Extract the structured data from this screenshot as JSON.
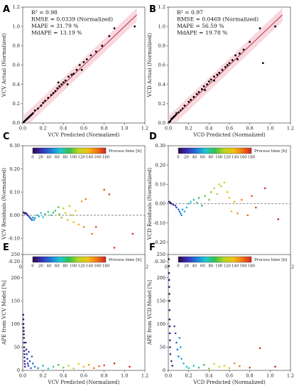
{
  "colorbar": {
    "label": "Process time [h]",
    "ticks": [
      0,
      20,
      40,
      60,
      80,
      100,
      120,
      140,
      160,
      180
    ],
    "range": [
      0,
      180
    ],
    "colors": [
      "#2a0a4a",
      "#3b2fb8",
      "#1e7ad6",
      "#1fc7d4",
      "#33c14a",
      "#b7d822",
      "#f2c214",
      "#f07a14",
      "#d6201e"
    ]
  },
  "chart_data": [
    {
      "id": "A",
      "type": "scatter",
      "letter": "A",
      "xlabel": "VCV Predicted (Normalized)",
      "ylabel": "VCV Actual (Normalized)",
      "xlim": [
        0,
        1.2
      ],
      "ylim": [
        0,
        1.2
      ],
      "xticks": [
        "0.0",
        "0.2",
        "0.4",
        "0.6",
        "0.8",
        "1.0",
        "1.2"
      ],
      "yticks": [
        "0.0",
        "0.2",
        "0.4",
        "0.6",
        "0.8",
        "1.0",
        "1.2"
      ],
      "stats": [
        "R² = 0.98",
        "RMSE = 0.0339 (Normalized)",
        "MAPE = 31.79 %",
        "MdAPE = 13.19 %"
      ],
      "fit_line": [
        [
          0,
          0
        ],
        [
          1.12,
          1.12
        ]
      ],
      "band_color": "#f3b8c4",
      "line_color": "#b5203a",
      "point_color": "#000000",
      "points": [
        [
          0.01,
          0.01
        ],
        [
          0.02,
          0.02
        ],
        [
          0.03,
          0.03
        ],
        [
          0.04,
          0.04
        ],
        [
          0.05,
          0.05
        ],
        [
          0.06,
          0.06
        ],
        [
          0.07,
          0.07
        ],
        [
          0.08,
          0.08
        ],
        [
          0.09,
          0.09
        ],
        [
          0.1,
          0.1
        ],
        [
          0.12,
          0.13
        ],
        [
          0.15,
          0.15
        ],
        [
          0.18,
          0.18
        ],
        [
          0.2,
          0.21
        ],
        [
          0.22,
          0.23
        ],
        [
          0.25,
          0.26
        ],
        [
          0.28,
          0.29
        ],
        [
          0.3,
          0.31
        ],
        [
          0.32,
          0.33
        ],
        [
          0.34,
          0.36
        ],
        [
          0.36,
          0.38
        ],
        [
          0.38,
          0.4
        ],
        [
          0.4,
          0.42
        ],
        [
          0.42,
          0.44
        ],
        [
          0.45,
          0.48
        ],
        [
          0.48,
          0.5
        ],
        [
          0.5,
          0.51
        ],
        [
          0.53,
          0.55
        ],
        [
          0.56,
          0.6
        ],
        [
          0.6,
          0.63
        ],
        [
          0.63,
          0.66
        ],
        [
          0.67,
          0.7
        ],
        [
          0.72,
          0.74
        ],
        [
          0.78,
          0.8
        ],
        [
          0.85,
          0.9
        ],
        [
          0.9,
          0.98
        ],
        [
          1.1,
          1.0
        ],
        [
          0.58,
          0.55
        ],
        [
          0.44,
          0.4
        ],
        [
          0.35,
          0.42
        ]
      ]
    },
    {
      "id": "B",
      "type": "scatter",
      "letter": "B",
      "xlabel": "VCD Predicted (Normalized)",
      "ylabel": "VCD Actual (Normalized)",
      "xlim": [
        0,
        1.2
      ],
      "ylim": [
        0,
        1.2
      ],
      "xticks": [
        "0.0",
        "0.2",
        "0.4",
        "0.6",
        "0.8",
        "1.0",
        "1.2"
      ],
      "yticks": [
        "0.0",
        "0.2",
        "0.4",
        "0.6",
        "0.8",
        "1.0",
        "1.2"
      ],
      "stats": [
        "R² = 0.97",
        "RMSE = 0.0469 (Normalized)",
        "MAPE = 56.59 %",
        "MdAPE = 19.78 %"
      ],
      "fit_line": [
        [
          0,
          0
        ],
        [
          1.12,
          1.12
        ]
      ],
      "band_color": "#f3b8c4",
      "line_color": "#b5203a",
      "point_color": "#000000",
      "points": [
        [
          0.01,
          0.01
        ],
        [
          0.02,
          0.02
        ],
        [
          0.03,
          0.04
        ],
        [
          0.04,
          0.05
        ],
        [
          0.05,
          0.06
        ],
        [
          0.06,
          0.07
        ],
        [
          0.07,
          0.08
        ],
        [
          0.08,
          0.1
        ],
        [
          0.1,
          0.11
        ],
        [
          0.12,
          0.13
        ],
        [
          0.14,
          0.15
        ],
        [
          0.16,
          0.18
        ],
        [
          0.2,
          0.22
        ],
        [
          0.22,
          0.24
        ],
        [
          0.25,
          0.27
        ],
        [
          0.28,
          0.3
        ],
        [
          0.3,
          0.32
        ],
        [
          0.33,
          0.35
        ],
        [
          0.35,
          0.38
        ],
        [
          0.38,
          0.4
        ],
        [
          0.4,
          0.43
        ],
        [
          0.42,
          0.45
        ],
        [
          0.45,
          0.48
        ],
        [
          0.48,
          0.5
        ],
        [
          0.5,
          0.52
        ],
        [
          0.53,
          0.55
        ],
        [
          0.56,
          0.58
        ],
        [
          0.6,
          0.62
        ],
        [
          0.63,
          0.65
        ],
        [
          0.66,
          0.7
        ],
        [
          0.7,
          0.72
        ],
        [
          0.74,
          0.76
        ],
        [
          0.8,
          0.84
        ],
        [
          0.9,
          0.98
        ],
        [
          0.93,
          0.62
        ],
        [
          1.05,
          1.0
        ],
        [
          0.58,
          0.6
        ],
        [
          0.45,
          0.44
        ],
        [
          0.36,
          0.34
        ],
        [
          0.68,
          0.66
        ]
      ]
    },
    {
      "id": "C",
      "type": "scatter",
      "letter": "C",
      "xlabel": "VCV Predicted (Normalized)",
      "ylabel": "VCV Residuals (Normalized)",
      "xlim": [
        0,
        1.2
      ],
      "ylim": [
        -0.2,
        0.3
      ],
      "xticks": [
        "0.0",
        "0.2",
        "0.4",
        "0.6",
        "0.8",
        "1.0",
        "1.2"
      ],
      "yticks": [
        "-0.20",
        "-0.10",
        "0.00",
        "0.10",
        "0.20",
        "0.30"
      ],
      "reference_line": 0,
      "points": [
        [
          0.01,
          0.012,
          5
        ],
        [
          0.02,
          0.008,
          8
        ],
        [
          0.03,
          0.01,
          12
        ],
        [
          0.04,
          0.005,
          18
        ],
        [
          0.05,
          0.0,
          22
        ],
        [
          0.06,
          -0.005,
          30
        ],
        [
          0.07,
          -0.01,
          35
        ],
        [
          0.08,
          -0.015,
          40
        ],
        [
          0.09,
          -0.02,
          45
        ],
        [
          0.1,
          -0.01,
          48
        ],
        [
          0.11,
          -0.02,
          50
        ],
        [
          0.12,
          -0.012,
          55
        ],
        [
          0.14,
          0.0,
          60
        ],
        [
          0.16,
          -0.005,
          62
        ],
        [
          0.18,
          0.01,
          65
        ],
        [
          0.2,
          -0.008,
          70
        ],
        [
          0.22,
          0.005,
          72
        ],
        [
          0.25,
          0.015,
          75
        ],
        [
          0.28,
          0.0,
          80
        ],
        [
          0.3,
          0.012,
          85
        ],
        [
          0.32,
          0.02,
          90
        ],
        [
          0.35,
          0.035,
          95
        ],
        [
          0.36,
          0.005,
          100
        ],
        [
          0.38,
          -0.01,
          105
        ],
        [
          0.4,
          0.03,
          110
        ],
        [
          0.42,
          0.01,
          115
        ],
        [
          0.44,
          -0.02,
          118
        ],
        [
          0.46,
          0.04,
          120
        ],
        [
          0.48,
          0.0,
          125
        ],
        [
          0.5,
          -0.03,
          130
        ],
        [
          0.52,
          0.02,
          135
        ],
        [
          0.55,
          -0.04,
          140
        ],
        [
          0.58,
          0.06,
          145
        ],
        [
          0.6,
          -0.05,
          150
        ],
        [
          0.62,
          0.07,
          155
        ],
        [
          0.68,
          -0.08,
          160
        ],
        [
          0.72,
          -0.05,
          165
        ],
        [
          0.8,
          0.11,
          170
        ],
        [
          0.85,
          0.09,
          172
        ],
        [
          0.9,
          -0.14,
          175
        ],
        [
          1.08,
          -0.08,
          180
        ]
      ]
    },
    {
      "id": "D",
      "type": "scatter",
      "letter": "D",
      "xlabel": "VCD Predicted (Normalized)",
      "ylabel": "VCD Residuals (Normalized)",
      "xlim": [
        0,
        1.2
      ],
      "ylim": [
        -0.3,
        0.3
      ],
      "xticks": [
        "0.0",
        "0.2",
        "0.4",
        "0.6",
        "0.8",
        "1.0",
        "1.2"
      ],
      "yticks": [
        "-0.30",
        "-0.20",
        "-0.10",
        "0.00",
        "0.10",
        "0.20",
        "0.30"
      ],
      "reference_line": 0,
      "points": [
        [
          0.01,
          0.01,
          4
        ],
        [
          0.02,
          0.005,
          8
        ],
        [
          0.03,
          0.0,
          12
        ],
        [
          0.05,
          -0.005,
          18
        ],
        [
          0.07,
          -0.01,
          25
        ],
        [
          0.08,
          -0.02,
          32
        ],
        [
          0.1,
          -0.03,
          38
        ],
        [
          0.11,
          -0.04,
          42
        ],
        [
          0.12,
          -0.05,
          46
        ],
        [
          0.13,
          -0.06,
          50
        ],
        [
          0.14,
          -0.03,
          55
        ],
        [
          0.16,
          -0.04,
          58
        ],
        [
          0.18,
          -0.02,
          62
        ],
        [
          0.2,
          0.0,
          66
        ],
        [
          0.22,
          0.01,
          70
        ],
        [
          0.25,
          0.02,
          75
        ],
        [
          0.28,
          0.005,
          80
        ],
        [
          0.3,
          0.03,
          85
        ],
        [
          0.33,
          -0.01,
          90
        ],
        [
          0.36,
          0.04,
          95
        ],
        [
          0.4,
          0.02,
          100
        ],
        [
          0.42,
          0.06,
          105
        ],
        [
          0.45,
          0.08,
          110
        ],
        [
          0.48,
          0.05,
          115
        ],
        [
          0.5,
          0.1,
          118
        ],
        [
          0.52,
          0.09,
          122
        ],
        [
          0.55,
          0.11,
          128
        ],
        [
          0.58,
          0.06,
          132
        ],
        [
          0.6,
          0.03,
          136
        ],
        [
          0.62,
          -0.04,
          140
        ],
        [
          0.65,
          0.01,
          145
        ],
        [
          0.68,
          -0.05,
          150
        ],
        [
          0.72,
          0.02,
          155
        ],
        [
          0.78,
          -0.06,
          162
        ],
        [
          0.82,
          0.04,
          168
        ],
        [
          0.86,
          -0.02,
          172
        ],
        [
          0.93,
          -0.29,
          176
        ],
        [
          0.95,
          0.08,
          178
        ],
        [
          1.08,
          -0.08,
          180
        ]
      ]
    },
    {
      "id": "E",
      "type": "scatter",
      "letter": "E",
      "xlabel": "VCV Predicted (Normalized)",
      "ylabel": "APE from VCV Model [%]",
      "xlim": [
        0,
        1.2
      ],
      "ylim": [
        0,
        250
      ],
      "xticks": [
        "0.0",
        "0.2",
        "0.4",
        "0.6",
        "0.8",
        "1.0",
        "1.2"
      ],
      "yticks": [
        "0",
        "50",
        "100",
        "150",
        "200",
        "250"
      ],
      "points": [
        [
          0.005,
          120,
          0
        ],
        [
          0.006,
          110,
          1
        ],
        [
          0.007,
          100,
          2
        ],
        [
          0.008,
          92,
          3
        ],
        [
          0.01,
          85,
          4
        ],
        [
          0.011,
          78,
          5
        ],
        [
          0.012,
          70,
          6
        ],
        [
          0.013,
          60,
          7
        ],
        [
          0.014,
          50,
          8
        ],
        [
          0.015,
          42,
          9
        ],
        [
          0.016,
          35,
          10
        ],
        [
          0.017,
          28,
          11
        ],
        [
          0.018,
          20,
          12
        ],
        [
          0.02,
          14,
          13
        ],
        [
          0.022,
          8,
          14
        ],
        [
          0.03,
          60,
          18
        ],
        [
          0.035,
          45,
          20
        ],
        [
          0.04,
          35,
          22
        ],
        [
          0.045,
          25,
          24
        ],
        [
          0.05,
          15,
          26
        ],
        [
          0.055,
          10,
          28
        ],
        [
          0.06,
          40,
          30
        ],
        [
          0.07,
          20,
          34
        ],
        [
          0.08,
          5,
          38
        ],
        [
          0.09,
          30,
          40
        ],
        [
          0.1,
          15,
          44
        ],
        [
          0.12,
          8,
          48
        ],
        [
          0.15,
          5,
          52
        ],
        [
          0.2,
          10,
          60
        ],
        [
          0.25,
          4,
          70
        ],
        [
          0.3,
          8,
          80
        ],
        [
          0.35,
          12,
          90
        ],
        [
          0.4,
          6,
          100
        ],
        [
          0.45,
          10,
          110
        ],
        [
          0.5,
          4,
          120
        ],
        [
          0.55,
          14,
          130
        ],
        [
          0.6,
          8,
          140
        ],
        [
          0.65,
          12,
          150
        ],
        [
          0.7,
          5,
          160
        ],
        [
          0.75,
          9,
          165
        ],
        [
          0.8,
          11,
          170
        ],
        [
          0.9,
          15,
          175
        ],
        [
          1.05,
          8,
          180
        ]
      ]
    },
    {
      "id": "F",
      "type": "scatter",
      "letter": "F",
      "xlabel": "VCD Predicted (Normalized)",
      "ylabel": "APE from VCD Model [%]",
      "xlim": [
        0,
        1.2
      ],
      "ylim": [
        0,
        250
      ],
      "xticks": [
        "0.0",
        "0.2",
        "0.4",
        "0.6",
        "0.8",
        "1.0",
        "1.2"
      ],
      "yticks": [
        "0",
        "50",
        "100",
        "150",
        "200",
        "250"
      ],
      "points": [
        [
          0.005,
          240,
          0
        ],
        [
          0.006,
          225,
          1
        ],
        [
          0.007,
          210,
          2
        ],
        [
          0.008,
          195,
          3
        ],
        [
          0.009,
          180,
          4
        ],
        [
          0.01,
          165,
          5
        ],
        [
          0.011,
          150,
          6
        ],
        [
          0.012,
          130,
          7
        ],
        [
          0.013,
          110,
          8
        ],
        [
          0.014,
          95,
          9
        ],
        [
          0.015,
          80,
          10
        ],
        [
          0.016,
          65,
          11
        ],
        [
          0.017,
          50,
          12
        ],
        [
          0.02,
          35,
          14
        ],
        [
          0.03,
          20,
          16
        ],
        [
          0.04,
          10,
          18
        ],
        [
          0.06,
          95,
          30
        ],
        [
          0.07,
          80,
          34
        ],
        [
          0.08,
          60,
          40
        ],
        [
          0.09,
          45,
          44
        ],
        [
          0.1,
          30,
          48
        ],
        [
          0.11,
          70,
          52
        ],
        [
          0.12,
          50,
          55
        ],
        [
          0.13,
          25,
          58
        ],
        [
          0.15,
          15,
          62
        ],
        [
          0.18,
          8,
          66
        ],
        [
          0.2,
          5,
          70
        ],
        [
          0.25,
          10,
          76
        ],
        [
          0.3,
          6,
          82
        ],
        [
          0.35,
          12,
          90
        ],
        [
          0.4,
          4,
          100
        ],
        [
          0.45,
          14,
          110
        ],
        [
          0.5,
          8,
          120
        ],
        [
          0.55,
          10,
          130
        ],
        [
          0.6,
          5,
          140
        ],
        [
          0.65,
          15,
          150
        ],
        [
          0.7,
          9,
          160
        ],
        [
          0.8,
          6,
          168
        ],
        [
          0.9,
          48,
          175
        ],
        [
          1.05,
          8,
          180
        ]
      ]
    }
  ]
}
